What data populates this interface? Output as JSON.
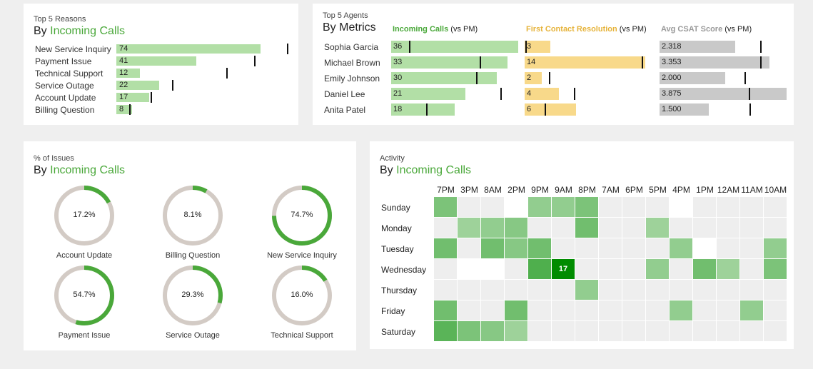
{
  "colors": {
    "green": "#4aa83a",
    "green_bar": "#b2dfa6",
    "yellow_bar": "#f8d98a",
    "gray_bar": "#c9c9c9",
    "yellow_text": "#e6b33a",
    "gray_text": "#999999"
  },
  "reasons": {
    "small_title": "Top 5 Reasons",
    "title_prefix": "By ",
    "title_accent": "Incoming Calls",
    "chart_data": {
      "type": "bar",
      "categories": [
        "New Service Inquiry",
        "Payment Issue",
        "Technical Support",
        "Service Outage",
        "Account Update",
        "Billing Question"
      ],
      "values": [
        74,
        41,
        12,
        22,
        17,
        8
      ],
      "targets": [
        88,
        71,
        57,
        29,
        18,
        7
      ],
      "xlim": [
        0,
        88
      ]
    }
  },
  "agents": {
    "small_title": "Top 5 Agents",
    "title": "By Metrics",
    "vs_label": "(vs PM)",
    "chart_data": {
      "type": "bar",
      "categories": [
        "Sophia Garcia",
        "Michael Brown",
        "Emily Johnson",
        "Daniel Lee",
        "Anita Patel"
      ],
      "series": [
        {
          "name": "Incoming Calls",
          "values": [
            36,
            33,
            30,
            21,
            18
          ],
          "targets": [
            5,
            25,
            24,
            31,
            10
          ],
          "labels": [
            "36",
            "33",
            "30",
            "21",
            "18"
          ],
          "xlim": [
            0,
            36
          ]
        },
        {
          "name": "First Contact Resolution",
          "values": [
            3,
            14,
            2,
            4,
            6
          ],
          "targets": [
            0.1,
            13.6,
            2.8,
            5.7,
            2.3
          ],
          "labels": [
            "3",
            "14",
            "2",
            "4",
            "6"
          ],
          "xlim": [
            0,
            14.5
          ]
        },
        {
          "name": "Avg CSAT Score",
          "values": [
            2.318,
            3.353,
            2.0,
            3.875,
            1.5
          ],
          "targets": [
            3.07,
            3.07,
            2.6,
            2.72,
            2.75
          ],
          "labels": [
            "2.318",
            "3.353",
            "2.000",
            "3.875",
            "1.500"
          ],
          "xlim": [
            0,
            3.875
          ]
        }
      ]
    }
  },
  "issues": {
    "small_title": "% of Issues",
    "title_prefix": "By ",
    "title_accent": "Incoming Calls",
    "chart_data": {
      "type": "pie",
      "categories": [
        "Account Update",
        "Billing Question",
        "New Service Inquiry",
        "Payment Issue",
        "Service Outage",
        "Technical Support"
      ],
      "values": [
        17.2,
        8.1,
        74.7,
        54.7,
        29.3,
        16.0
      ],
      "labels": [
        "17.2%",
        "8.1%",
        "74.7%",
        "54.7%",
        "29.3%",
        "16.0%"
      ]
    }
  },
  "activity": {
    "small_title": "Activity",
    "title_prefix": "By ",
    "title_accent": "Incoming Calls",
    "chart_data": {
      "type": "heatmap",
      "x": [
        "7PM",
        "3PM",
        "8AM",
        "2PM",
        "9PM",
        "9AM",
        "8PM",
        "7AM",
        "6PM",
        "5PM",
        "4PM",
        "1PM",
        "12AM",
        "11AM",
        "10AM"
      ],
      "y": [
        "Sunday",
        "Monday",
        "Tuesday",
        "Wednesday",
        "Thursday",
        "Friday",
        "Saturday"
      ],
      "values": [
        [
          6,
          2,
          2,
          0,
          4,
          4,
          6,
          2,
          2,
          2,
          0,
          2,
          2,
          2,
          2
        ],
        [
          2,
          3,
          4,
          5,
          2,
          2,
          7,
          2,
          2,
          3,
          2,
          2,
          2,
          2,
          2
        ],
        [
          7,
          2,
          7,
          5,
          7,
          2,
          2,
          2,
          2,
          2,
          4,
          0,
          2,
          2,
          4
        ],
        [
          2,
          0,
          0,
          2,
          10,
          17,
          2,
          2,
          2,
          4,
          2,
          7,
          3,
          2,
          6
        ],
        [
          2,
          2,
          2,
          2,
          2,
          2,
          4,
          2,
          2,
          2,
          2,
          2,
          2,
          2,
          2
        ],
        [
          7,
          2,
          2,
          7,
          2,
          2,
          2,
          2,
          2,
          2,
          4,
          2,
          2,
          4,
          2
        ],
        [
          9,
          6,
          5,
          3,
          2,
          2,
          2,
          2,
          2,
          2,
          2,
          2,
          2,
          2,
          2
        ]
      ],
      "shown_labels": [
        {
          "row": 3,
          "col": 5,
          "text": "17"
        }
      ],
      "zmax": 17
    }
  }
}
